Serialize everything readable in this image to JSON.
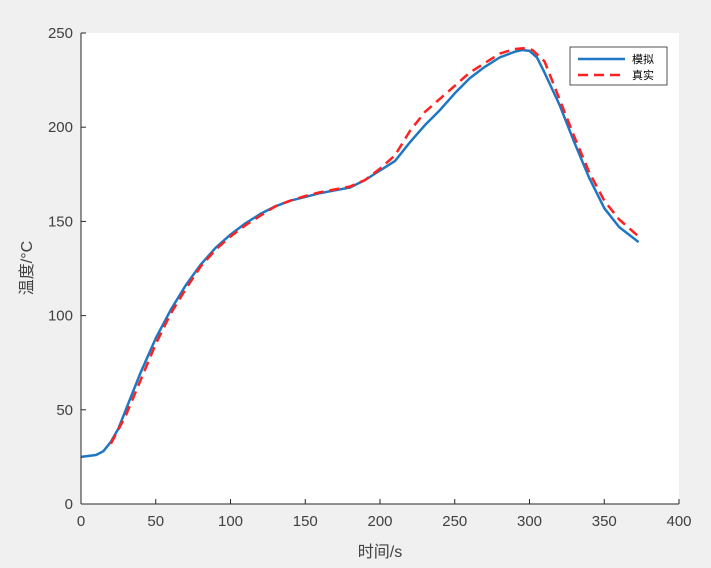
{
  "chart_data": {
    "type": "line",
    "title": "",
    "xlabel": "时间/s",
    "ylabel": "温度/°C",
    "xlim": [
      0,
      400
    ],
    "ylim": [
      0,
      250
    ],
    "xticks": [
      0,
      50,
      100,
      150,
      200,
      250,
      300,
      350,
      400
    ],
    "yticks": [
      0,
      50,
      100,
      150,
      200,
      250
    ],
    "grid": false,
    "legend_position": "top-right",
    "series": [
      {
        "name": "模拟",
        "color": "#1f77c4",
        "style": "solid",
        "x": [
          0,
          10,
          15,
          20,
          25,
          30,
          40,
          50,
          60,
          70,
          80,
          90,
          100,
          110,
          120,
          130,
          140,
          150,
          160,
          170,
          180,
          190,
          200,
          210,
          220,
          230,
          240,
          250,
          260,
          270,
          280,
          290,
          295,
          300,
          305,
          310,
          320,
          330,
          340,
          350,
          360,
          373
        ],
        "y": [
          25,
          26,
          28,
          33,
          40,
          50,
          70,
          88,
          103,
          116,
          127,
          136,
          143,
          149,
          154,
          158,
          161,
          163,
          165,
          166.5,
          168,
          172,
          177,
          182,
          192,
          201,
          209,
          218,
          226,
          232,
          237,
          240,
          241,
          240.5,
          237,
          229,
          212,
          192,
          173,
          157,
          147,
          139
        ]
      },
      {
        "name": "真实",
        "color": "#ff2020",
        "style": "dashed",
        "x": [
          20,
          30,
          40,
          50,
          60,
          70,
          80,
          90,
          100,
          110,
          120,
          130,
          140,
          150,
          160,
          170,
          180,
          190,
          200,
          210,
          220,
          230,
          240,
          250,
          260,
          270,
          280,
          290,
          297,
          302,
          310,
          320,
          330,
          340,
          350,
          360,
          373
        ],
        "y": [
          32,
          47,
          66,
          85,
          101,
          114,
          126,
          135,
          142,
          148,
          153,
          158,
          161,
          163.5,
          165.5,
          167,
          168.5,
          172,
          178,
          185,
          198,
          208,
          215,
          222,
          229,
          234,
          239,
          241.5,
          242,
          241,
          235,
          215,
          195,
          176,
          161,
          151,
          142
        ]
      }
    ]
  }
}
